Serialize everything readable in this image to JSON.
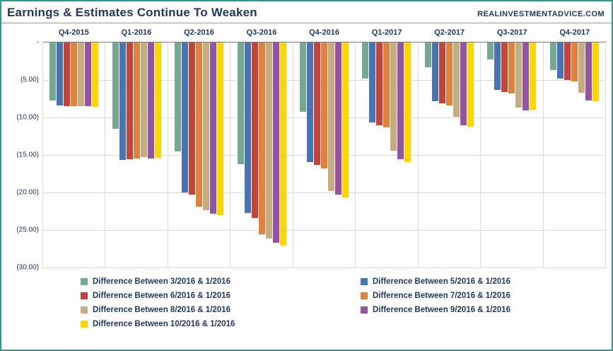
{
  "header": {
    "title": "Earnings & Estimates Continue To Weaken",
    "site": "REALINVESTMENTADVICE.COM"
  },
  "colors": {
    "frame_border": "#35978B",
    "text_navy": "#1F3864",
    "gridline": "#D9D9D9",
    "axis_line": "#7F7F7F"
  },
  "chart_data": {
    "type": "bar",
    "orientation": "vertical-negative",
    "title": "Earnings & Estimates Continue To Weaken",
    "xlabel": "",
    "ylabel": "",
    "ylim": [
      0,
      -30
    ],
    "grid": true,
    "legend_position": "bottom",
    "categories": [
      "Q4-2015",
      "Q1-2016",
      "Q2-2016",
      "Q3-2016",
      "Q4-2016",
      "Q1-2017",
      "Q2-2017",
      "Q3-2017",
      "Q4-2017"
    ],
    "ytick_labels": [
      "-",
      "(5.00)",
      "(10.00)",
      "(15.00)",
      "(20.00)",
      "(25.00)",
      "(30.00)"
    ],
    "ytick_values": [
      0,
      -5,
      -10,
      -15,
      -20,
      -25,
      -30
    ],
    "series": [
      {
        "name": "Difference Between 3/2016 & 1/2016",
        "color": "#74A892",
        "values": [
          -7.7,
          -11.5,
          -14.5,
          -16.2,
          -9.2,
          -4.8,
          -3.3,
          -2.3,
          -3.7
        ]
      },
      {
        "name": "Difference Between 5/2016 & 1/2016",
        "color": "#4974B4",
        "values": [
          -8.4,
          -15.7,
          -20.0,
          -22.7,
          -15.9,
          -10.7,
          -7.8,
          -6.3,
          -4.8
        ]
      },
      {
        "name": "Difference Between 6/2016 & 1/2016",
        "color": "#C2443A",
        "values": [
          -8.5,
          -15.6,
          -20.3,
          -23.4,
          -16.3,
          -11.0,
          -8.1,
          -6.6,
          -5.0
        ]
      },
      {
        "name": "Difference Between 7/2016 & 1/2016",
        "color": "#E0823C",
        "values": [
          -8.5,
          -15.5,
          -21.9,
          -25.6,
          -16.8,
          -11.3,
          -8.4,
          -6.8,
          -5.2
        ]
      },
      {
        "name": "Difference Between 8/2016 & 1/2016",
        "color": "#C6AC7E",
        "values": [
          -8.5,
          -15.3,
          -22.4,
          -26.1,
          -19.8,
          -14.4,
          -9.9,
          -8.7,
          -6.7
        ]
      },
      {
        "name": "Difference Between 9/2016 & 1/2016",
        "color": "#9653A2",
        "values": [
          -8.5,
          -15.5,
          -22.8,
          -26.7,
          -20.3,
          -15.6,
          -11.0,
          -9.1,
          -7.7
        ]
      },
      {
        "name": "Difference Between 10/2016 & 1/2016",
        "color": "#FFD500",
        "values": [
          -8.6,
          -15.4,
          -23.0,
          -27.1,
          -20.7,
          -15.9,
          -11.2,
          -9.0,
          -7.8
        ]
      }
    ]
  }
}
